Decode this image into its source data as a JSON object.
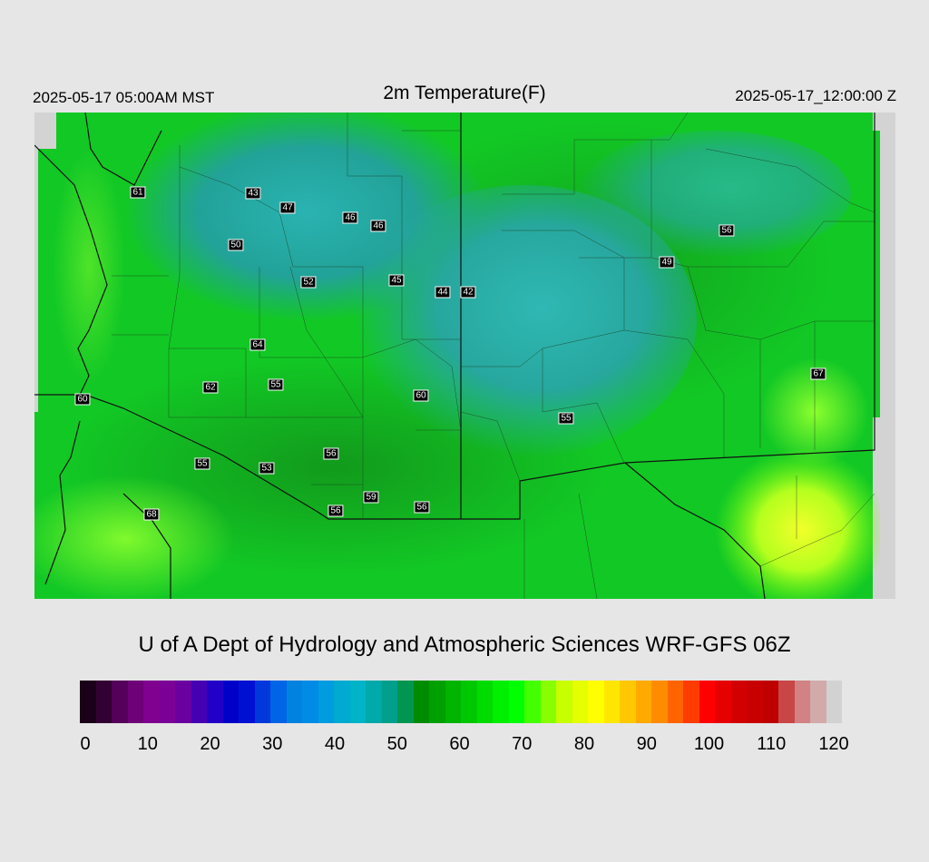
{
  "header": {
    "local_time": "2025-05-17 05:00AM MST",
    "title": "2m Temperature(F)",
    "valid_time": "2025-05-17_12:00:00 Z"
  },
  "credit": "U of A Dept of Hydrology and Atmospheric Sciences WRF-GFS 06Z",
  "stations": [
    {
      "value": "61"
    },
    {
      "value": "43"
    },
    {
      "value": "47"
    },
    {
      "value": "46"
    },
    {
      "value": "46"
    },
    {
      "value": "50"
    },
    {
      "value": "52"
    },
    {
      "value": "45"
    },
    {
      "value": "44"
    },
    {
      "value": "42"
    },
    {
      "value": "56"
    },
    {
      "value": "49"
    },
    {
      "value": "64"
    },
    {
      "value": "62"
    },
    {
      "value": "55"
    },
    {
      "value": "60"
    },
    {
      "value": "60"
    },
    {
      "value": "55"
    },
    {
      "value": "67"
    },
    {
      "value": "56"
    },
    {
      "value": "55"
    },
    {
      "value": "53"
    },
    {
      "value": "59"
    },
    {
      "value": "56"
    },
    {
      "value": "56"
    },
    {
      "value": "68"
    }
  ],
  "colorbar": {
    "unit": "F",
    "min": 0,
    "max": 120,
    "tick_labels": [
      "0",
      "10",
      "20",
      "30",
      "40",
      "50",
      "60",
      "70",
      "80",
      "90",
      "100",
      "110",
      "120"
    ],
    "colors": [
      "#1a0018",
      "#330033",
      "#55005a",
      "#6e0078",
      "#800090",
      "#7a0096",
      "#6a00a0",
      "#4600b4",
      "#2200c8",
      "#0000c8",
      "#0010d2",
      "#0038dc",
      "#0064e6",
      "#0082e0",
      "#008ce6",
      "#009ce0",
      "#00aad0",
      "#00b4c8",
      "#00aaaa",
      "#00a08c",
      "#009650",
      "#008c00",
      "#00a000",
      "#00b400",
      "#00c800",
      "#00dc00",
      "#00f000",
      "#00ff00",
      "#44ff00",
      "#88ff00",
      "#c8ff00",
      "#e6ff00",
      "#ffff00",
      "#ffe600",
      "#ffc800",
      "#ffaa00",
      "#ff8c00",
      "#ff6400",
      "#ff3c00",
      "#ff0000",
      "#e60000",
      "#d20000",
      "#c80000",
      "#be0000",
      "#c84646",
      "#d28282",
      "#d2aaaa",
      "#d2d2d2"
    ]
  }
}
